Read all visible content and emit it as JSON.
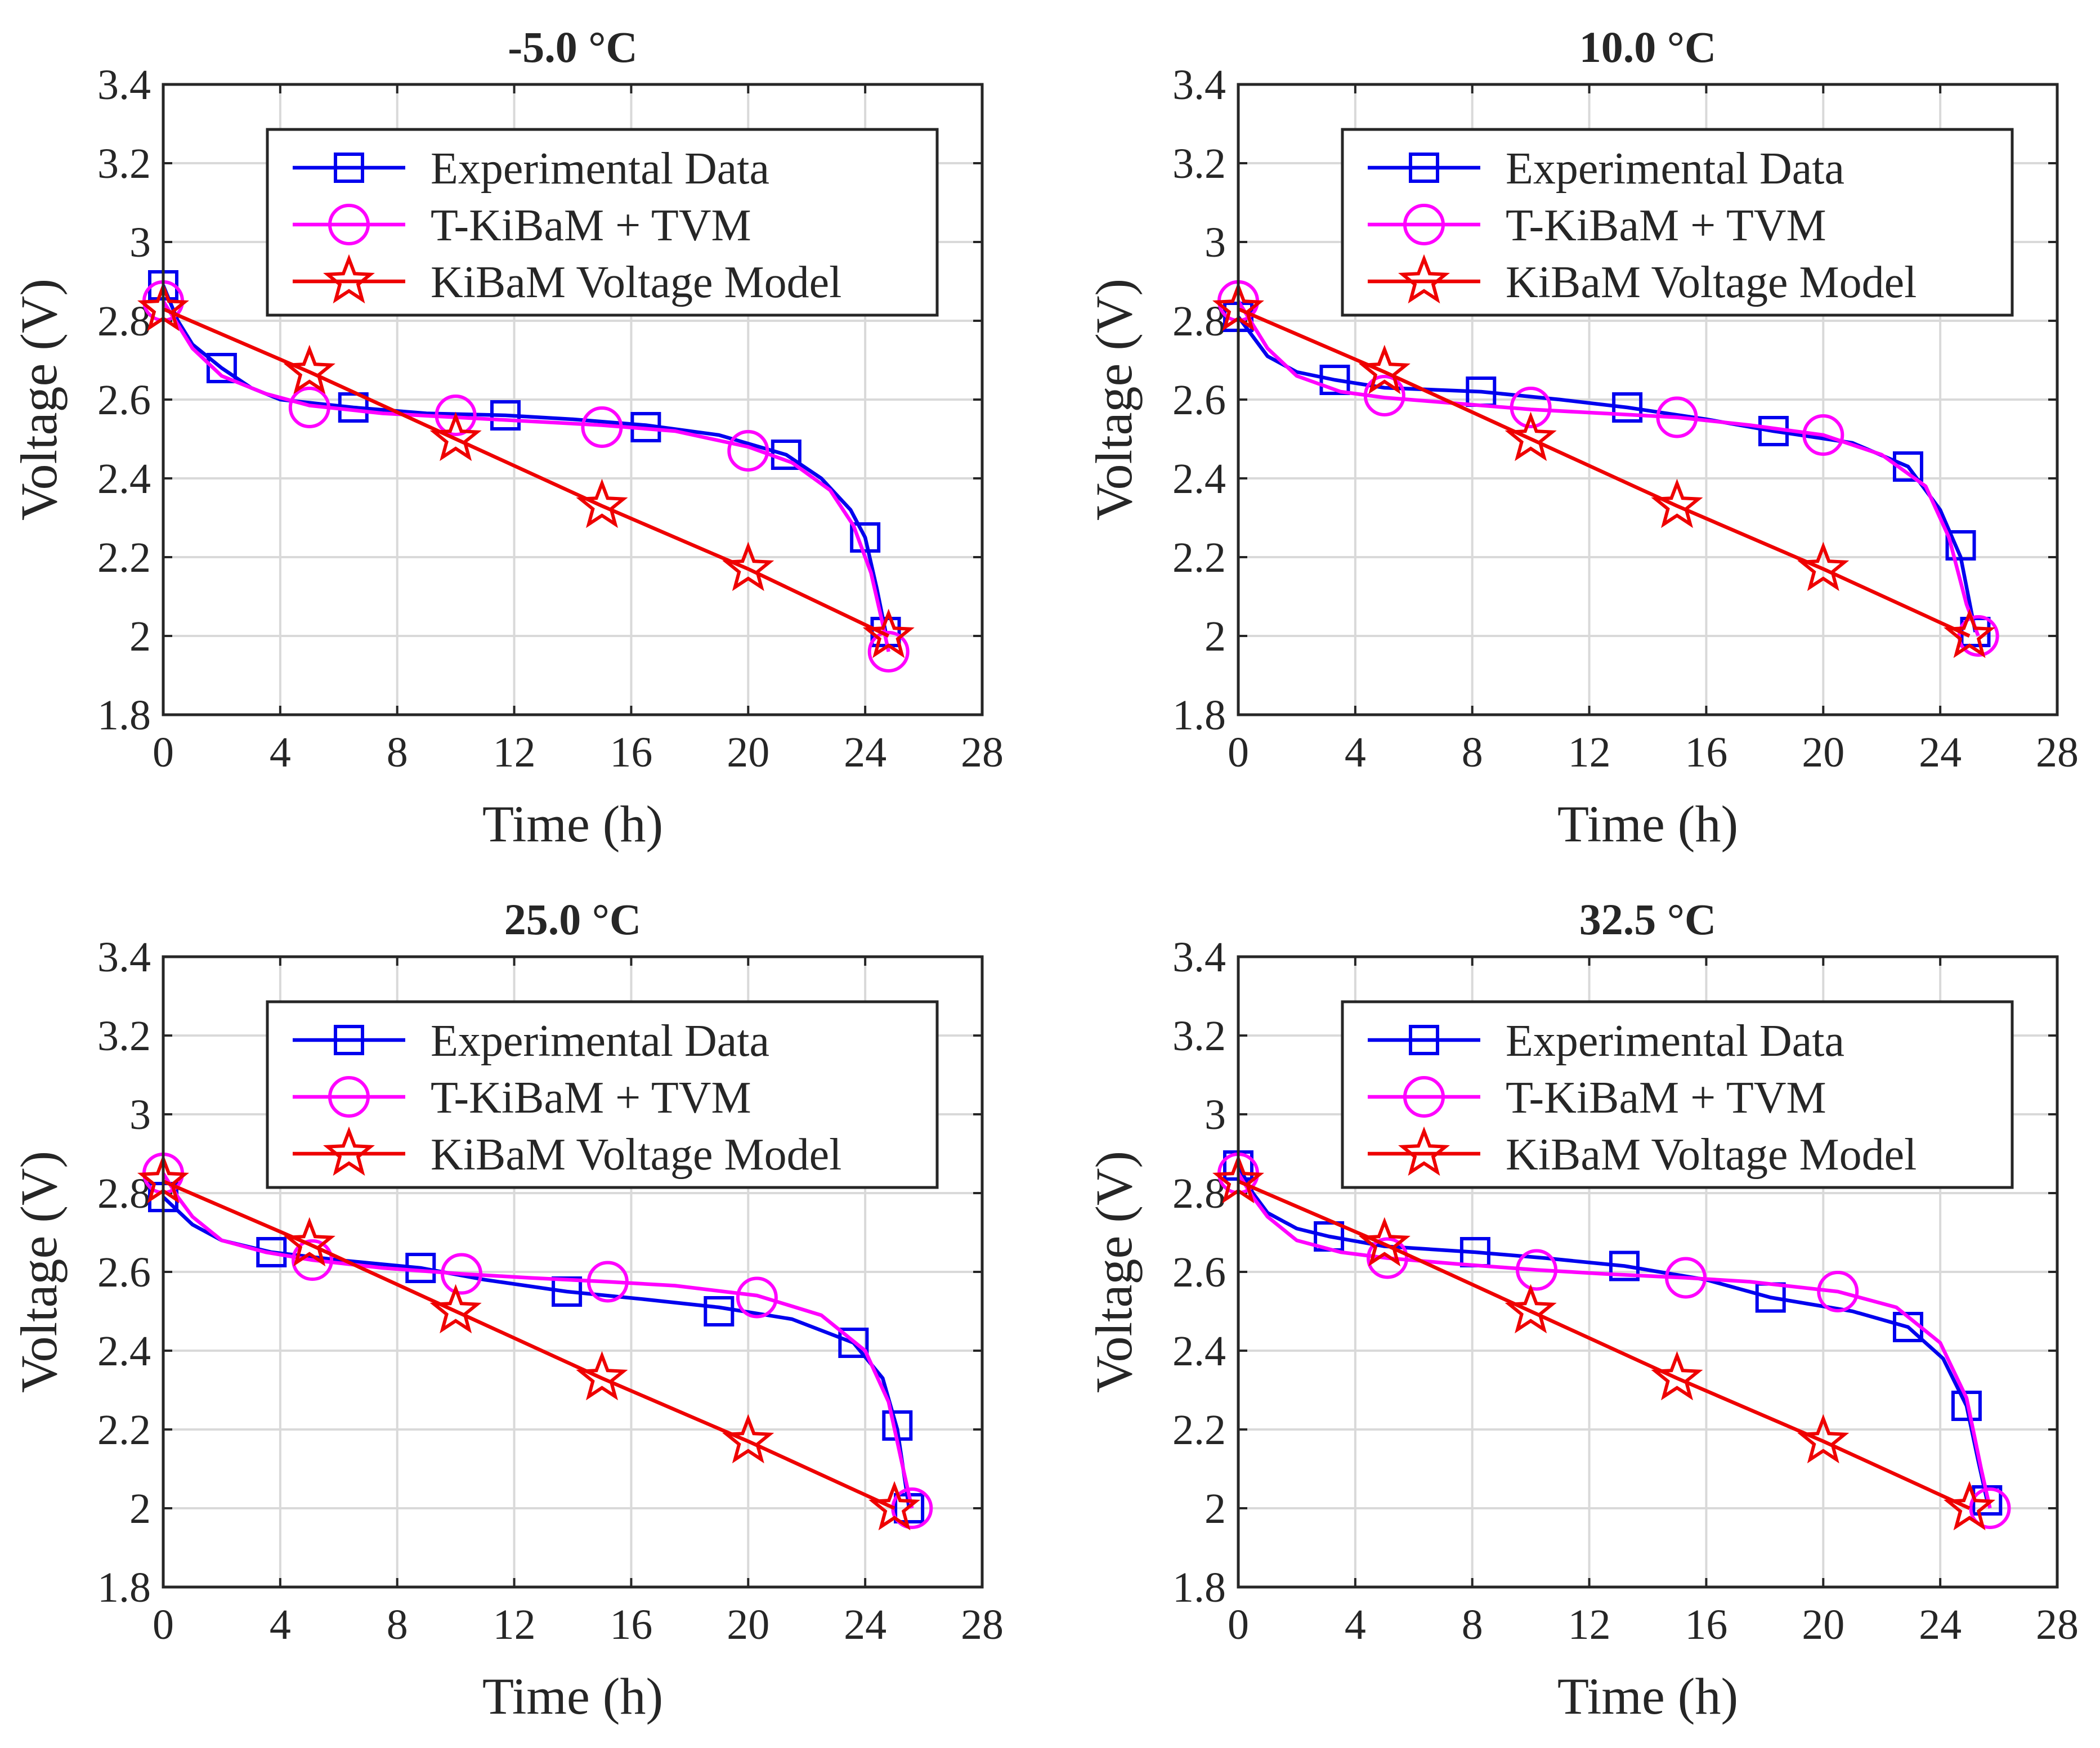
{
  "figure": {
    "colors": {
      "experimental": "#0000ee",
      "tkibam": "#ff00ff",
      "kibam": "#ee0000",
      "axes": "#262626",
      "grid": "#d9d9d9"
    }
  },
  "chart_data": [
    {
      "type": "line",
      "title": "-5.0 °C",
      "xlabel": "Time (h)",
      "ylabel": "Voltage (V)",
      "xlim": [
        0,
        28
      ],
      "ylim": [
        1.8,
        3.4
      ],
      "xticks": [
        "0",
        "4",
        "8",
        "12",
        "16",
        "20",
        "24",
        "28"
      ],
      "yticks": [
        "1.8",
        "2",
        "2.2",
        "2.4",
        "2.6",
        "2.8",
        "3",
        "3.2",
        "3.4"
      ],
      "grid": true,
      "legend_position": "top-right",
      "series": [
        {
          "name": "Experimental Data",
          "marker": "square",
          "x": [
            0,
            0.5,
            1,
            2,
            3,
            4,
            6.5,
            9,
            11.7,
            14,
            16.5,
            19,
            21.3,
            22.5,
            23.5,
            24,
            24.4,
            24.7
          ],
          "y": [
            2.89,
            2.8,
            2.74,
            2.68,
            2.63,
            2.6,
            2.58,
            2.565,
            2.56,
            2.55,
            2.535,
            2.51,
            2.46,
            2.4,
            2.32,
            2.25,
            2.12,
            2.01
          ],
          "markers_x": [
            0,
            2,
            6.5,
            11.7,
            16.5,
            21.3,
            24,
            24.7
          ],
          "markers_y": [
            2.89,
            2.68,
            2.58,
            2.56,
            2.53,
            2.46,
            2.25,
            2.01
          ]
        },
        {
          "name": "T-KiBaM + TVM",
          "marker": "circle",
          "x": [
            0,
            0.5,
            1,
            2,
            3.5,
            5,
            7.5,
            10,
            12.5,
            15,
            17.5,
            20,
            21.5,
            22.8,
            23.6,
            24.2,
            24.6,
            24.8
          ],
          "y": [
            2.85,
            2.79,
            2.73,
            2.66,
            2.615,
            2.585,
            2.565,
            2.555,
            2.545,
            2.535,
            2.52,
            2.48,
            2.44,
            2.37,
            2.28,
            2.16,
            2.03,
            1.96
          ],
          "markers_x": [
            0,
            5,
            10,
            15,
            20,
            24.8
          ],
          "markers_y": [
            2.85,
            2.58,
            2.56,
            2.53,
            2.47,
            1.96
          ]
        },
        {
          "name": "KiBaM Voltage Model",
          "marker": "star",
          "x": [
            0,
            5,
            10,
            15,
            20,
            24.8
          ],
          "y": [
            2.83,
            2.67,
            2.5,
            2.33,
            2.17,
            2.0
          ],
          "markers_x": [
            0,
            5,
            10,
            15,
            20,
            24.8
          ],
          "markers_y": [
            2.83,
            2.67,
            2.5,
            2.33,
            2.17,
            2.0
          ]
        }
      ]
    },
    {
      "type": "line",
      "title": "10.0 °C",
      "xlabel": "Time (h)",
      "ylabel": "Voltage (V)",
      "xlim": [
        0,
        28
      ],
      "ylim": [
        1.8,
        3.4
      ],
      "xticks": [
        "0",
        "4",
        "8",
        "12",
        "16",
        "20",
        "24",
        "28"
      ],
      "yticks": [
        "1.8",
        "2",
        "2.2",
        "2.4",
        "2.6",
        "2.8",
        "3",
        "3.2",
        "3.4"
      ],
      "grid": true,
      "legend_position": "top-right",
      "series": [
        {
          "name": "Experimental Data",
          "marker": "square",
          "x": [
            0,
            0.5,
            1,
            2,
            3.3,
            5,
            8.3,
            11,
            13.3,
            16,
            18.3,
            21,
            22.9,
            24,
            24.7,
            25.2
          ],
          "y": [
            2.81,
            2.76,
            2.71,
            2.67,
            2.65,
            2.63,
            2.62,
            2.6,
            2.58,
            2.55,
            2.52,
            2.49,
            2.43,
            2.32,
            2.2,
            2.01
          ],
          "markers_x": [
            0,
            3.3,
            8.3,
            13.3,
            18.3,
            22.9,
            24.7,
            25.2
          ],
          "markers_y": [
            2.81,
            2.65,
            2.62,
            2.58,
            2.52,
            2.43,
            2.23,
            2.01
          ]
        },
        {
          "name": "T-KiBaM + TVM",
          "marker": "circle",
          "x": [
            0,
            0.5,
            1,
            2,
            3.5,
            5,
            7.5,
            10,
            12.5,
            15,
            17.5,
            20,
            22,
            23.5,
            24.3,
            24.9,
            25.3
          ],
          "y": [
            2.85,
            2.79,
            2.73,
            2.66,
            2.62,
            2.605,
            2.59,
            2.575,
            2.565,
            2.555,
            2.535,
            2.51,
            2.46,
            2.38,
            2.25,
            2.08,
            2.0
          ],
          "markers_x": [
            0,
            5,
            10,
            15,
            20,
            25.3
          ],
          "markers_y": [
            2.85,
            2.61,
            2.58,
            2.555,
            2.51,
            2.0
          ]
        },
        {
          "name": "KiBaM Voltage Model",
          "marker": "star",
          "x": [
            0,
            5,
            10,
            15,
            20,
            25
          ],
          "y": [
            2.83,
            2.67,
            2.5,
            2.33,
            2.17,
            2.0
          ],
          "markers_x": [
            0,
            5,
            10,
            15,
            20,
            25
          ],
          "markers_y": [
            2.83,
            2.67,
            2.5,
            2.33,
            2.17,
            2.0
          ]
        }
      ]
    },
    {
      "type": "line",
      "title": "25.0 °C",
      "xlabel": "Time (h)",
      "ylabel": "Voltage (V)",
      "xlim": [
        0,
        28
      ],
      "ylim": [
        1.8,
        3.4
      ],
      "xticks": [
        "0",
        "4",
        "8",
        "12",
        "16",
        "20",
        "24",
        "28"
      ],
      "yticks": [
        "1.8",
        "2",
        "2.2",
        "2.4",
        "2.6",
        "2.8",
        "3",
        "3.2",
        "3.4"
      ],
      "grid": true,
      "legend_position": "top-right",
      "series": [
        {
          "name": "Experimental Data",
          "marker": "square",
          "x": [
            0,
            1,
            2,
            3.7,
            6,
            8.8,
            11,
            13.8,
            16.5,
            19,
            21.5,
            23.6,
            24.6,
            25.1,
            25.5
          ],
          "y": [
            2.79,
            2.72,
            2.68,
            2.65,
            2.63,
            2.61,
            2.58,
            2.55,
            2.53,
            2.51,
            2.48,
            2.42,
            2.33,
            2.2,
            2.0
          ],
          "markers_x": [
            0,
            3.7,
            8.8,
            13.8,
            19,
            23.6,
            25.1,
            25.5
          ],
          "markers_y": [
            2.79,
            2.65,
            2.61,
            2.55,
            2.5,
            2.42,
            2.21,
            2.0
          ]
        },
        {
          "name": "T-KiBaM + TVM",
          "marker": "circle",
          "x": [
            0,
            0.5,
            1,
            2,
            3.5,
            5.1,
            7.5,
            10.2,
            12.5,
            15.2,
            17.5,
            20.3,
            22.5,
            24,
            24.8,
            25.3,
            25.6
          ],
          "y": [
            2.85,
            2.79,
            2.74,
            2.68,
            2.65,
            2.63,
            2.61,
            2.595,
            2.585,
            2.575,
            2.565,
            2.54,
            2.49,
            2.4,
            2.27,
            2.1,
            2.0
          ],
          "markers_x": [
            0,
            5.1,
            10.2,
            15.2,
            20.3,
            25.6
          ],
          "markers_y": [
            2.85,
            2.63,
            2.595,
            2.575,
            2.535,
            2.0
          ]
        },
        {
          "name": "KiBaM Voltage Model",
          "marker": "star",
          "x": [
            0,
            5,
            10,
            15,
            20,
            25
          ],
          "y": [
            2.83,
            2.67,
            2.5,
            2.33,
            2.17,
            2.0
          ],
          "markers_x": [
            0,
            5,
            10,
            15,
            20,
            25
          ],
          "markers_y": [
            2.83,
            2.67,
            2.5,
            2.33,
            2.17,
            2.0
          ]
        }
      ]
    },
    {
      "type": "line",
      "title": "32.5 °C",
      "xlabel": "Time (h)",
      "ylabel": "Voltage (V)",
      "xlim": [
        0,
        28
      ],
      "ylim": [
        1.8,
        3.4
      ],
      "xticks": [
        "0",
        "4",
        "8",
        "12",
        "16",
        "20",
        "24",
        "28"
      ],
      "yticks": [
        "1.8",
        "2",
        "2.2",
        "2.4",
        "2.6",
        "2.8",
        "3",
        "3.2",
        "3.4"
      ],
      "grid": true,
      "legend_position": "top-right",
      "series": [
        {
          "name": "Experimental Data",
          "marker": "square",
          "x": [
            0,
            0.5,
            1,
            2,
            3.1,
            5,
            8.1,
            10.5,
            13.2,
            16,
            18.2,
            21,
            22.9,
            24.1,
            24.9,
            25.3,
            25.6
          ],
          "y": [
            2.87,
            2.8,
            2.75,
            2.71,
            2.69,
            2.665,
            2.65,
            2.635,
            2.615,
            2.58,
            2.535,
            2.5,
            2.46,
            2.38,
            2.26,
            2.12,
            2.02
          ],
          "markers_x": [
            0,
            3.1,
            8.1,
            13.2,
            18.2,
            22.9,
            24.9,
            25.6
          ],
          "markers_y": [
            2.87,
            2.69,
            2.65,
            2.615,
            2.535,
            2.46,
            2.26,
            2.02
          ]
        },
        {
          "name": "T-KiBaM + TVM",
          "marker": "circle",
          "x": [
            0,
            0.5,
            1,
            2,
            3.5,
            5.1,
            7.5,
            10.2,
            12.5,
            15.3,
            17.5,
            20.5,
            22.5,
            24,
            24.9,
            25.4,
            25.7
          ],
          "y": [
            2.85,
            2.79,
            2.74,
            2.68,
            2.65,
            2.635,
            2.62,
            2.605,
            2.595,
            2.585,
            2.575,
            2.55,
            2.51,
            2.42,
            2.28,
            2.1,
            2.0
          ],
          "markers_x": [
            0,
            5.1,
            10.2,
            15.3,
            20.5,
            25.7
          ],
          "markers_y": [
            2.85,
            2.635,
            2.605,
            2.585,
            2.55,
            2.0
          ]
        },
        {
          "name": "KiBaM Voltage Model",
          "marker": "star",
          "x": [
            0,
            5,
            10,
            15,
            20,
            25
          ],
          "y": [
            2.83,
            2.67,
            2.5,
            2.33,
            2.17,
            2.0
          ],
          "markers_x": [
            0,
            5,
            10,
            15,
            20,
            25
          ],
          "markers_y": [
            2.83,
            2.67,
            2.5,
            2.33,
            2.17,
            2.0
          ]
        }
      ]
    }
  ]
}
